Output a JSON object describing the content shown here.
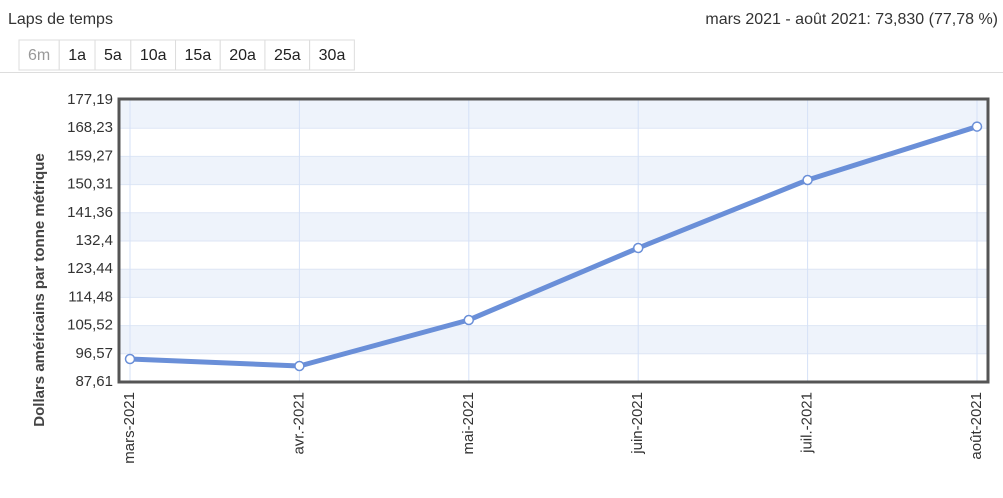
{
  "header": {
    "title": "Laps de temps",
    "summary": "mars 2021 - août 2021: 73,830 (77,78 %)",
    "buttons": [
      "6m",
      "1a",
      "5a",
      "10a",
      "15a",
      "20a",
      "25a",
      "30a"
    ],
    "active_button": 0
  },
  "chart_data": {
    "type": "line",
    "y_label": "Dollars américains par tonne métrique",
    "categories": [
      "mars-2021",
      "avr.-2021",
      "mai-2021",
      "juin-2021",
      "juil.-2021",
      "août-2021"
    ],
    "values": [
      94.92,
      92.69,
      107.31,
      130.18,
      151.78,
      168.75
    ],
    "color": "#6a8fd8",
    "ylim": [
      87.61,
      177.19
    ],
    "yticks": [
      {
        "value": 87.61,
        "label": "87,61"
      },
      {
        "value": 96.57,
        "label": "96,57"
      },
      {
        "value": 105.52,
        "label": "105,52"
      },
      {
        "value": 114.48,
        "label": "114,48"
      },
      {
        "value": 123.44,
        "label": "123,44"
      },
      {
        "value": 132.4,
        "label": "132,4"
      },
      {
        "value": 141.36,
        "label": "141,36"
      },
      {
        "value": 150.31,
        "label": "150,31"
      },
      {
        "value": 159.27,
        "label": "159,27"
      },
      {
        "value": 168.23,
        "label": "168,23"
      },
      {
        "value": 177.19,
        "label": "177,19"
      }
    ],
    "grid": true
  }
}
